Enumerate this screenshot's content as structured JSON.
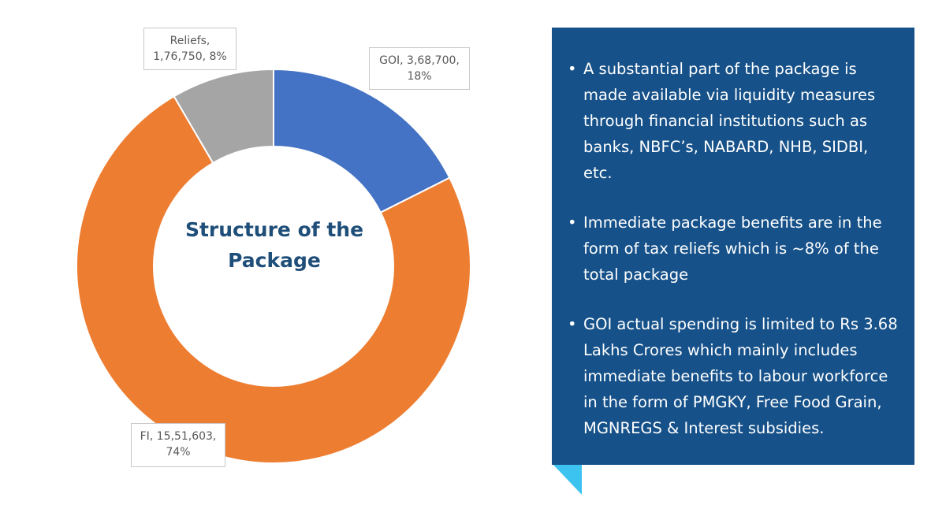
{
  "chart_data": {
    "type": "pie",
    "title": "Structure of the Package",
    "slices": [
      {
        "name": "GOI",
        "value": 368700,
        "value_label": "3,68,700",
        "percent": 18,
        "color": "#4472C4",
        "label": "GOI, 3,68,700, 18%"
      },
      {
        "name": "FI",
        "value": 1551603,
        "value_label": "15,51,603",
        "percent": 74,
        "color": "#ED7D31",
        "label": "FI, 15,51,603, 74%"
      },
      {
        "name": "Reliefs",
        "value": 176750,
        "value_label": "1,76,750",
        "percent": 8,
        "color": "#A5A5A5",
        "label": "Reliefs, 1,76,750, 8%"
      }
    ]
  },
  "labels": {
    "reliefs_line1": "Reliefs,",
    "reliefs_line2": "1,76,750, 8%",
    "goi_line1": "GOI, 3,68,700,",
    "goi_line2": "18%",
    "fi_line1": "FI, 15,51,603,",
    "fi_line2": "74%"
  },
  "center": {
    "line1": "Structure of the",
    "line2": "Package"
  },
  "panel": {
    "bullet_char": "•",
    "points": [
      "A substantial part of the package is made available via liquidity measures through financial institutions such as banks, NBFC’s, NABARD, NHB, SIDBI, etc.",
      "Immediate package benefits are in the form of tax reliefs which is ~8% of the total package",
      "GOI actual spending is limited to Rs 3.68 Lakhs Crores which mainly includes immediate benefits to labour workforce in the form of PMGKY, Free Food Grain, MGNREGS & Interest subsidies."
    ]
  }
}
